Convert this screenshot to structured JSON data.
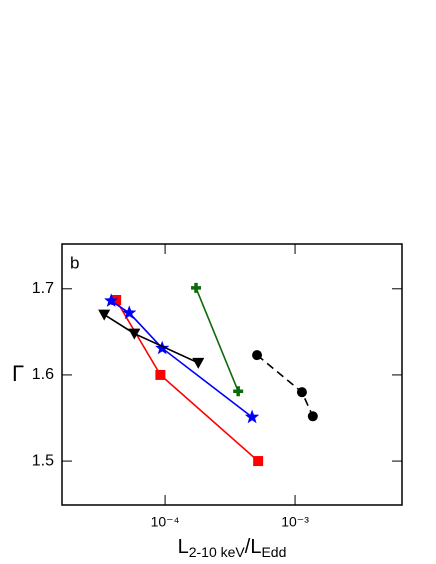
{
  "chart_data": {
    "type": "line",
    "panel_label": "b",
    "y_label": "Γ",
    "x_label": {
      "main": "L",
      "sub1": "2-10 keV",
      "sep": "/L",
      "sub2": "Edd"
    },
    "xscale": "log",
    "xlim": [
      1.61e-05,
      0.00665
    ],
    "ylim": [
      1.449,
      1.752
    ],
    "xticks": [
      {
        "value": 0.0001,
        "label": "10⁻⁴"
      },
      {
        "value": 0.001,
        "label": "10⁻³"
      }
    ],
    "yticks": [
      1.5,
      1.6,
      1.7
    ],
    "series": [
      {
        "color": "#ff0000",
        "marker": "square",
        "dash": "solid",
        "x": [
          4.2e-05,
          9.2e-05,
          0.00052
        ],
        "values": [
          1.687,
          1.6,
          1.5
        ]
      },
      {
        "color": "#0000ff",
        "marker": "star",
        "dash": "solid",
        "x": [
          3.85e-05,
          5.3e-05,
          9.5e-05,
          0.000467
        ],
        "values": [
          1.686,
          1.672,
          1.631,
          1.551
        ]
      },
      {
        "color": "#000000",
        "marker": "triangle-down",
        "dash": "solid",
        "x": [
          3.4e-05,
          5.8e-05,
          0.00018
        ],
        "values": [
          1.67,
          1.648,
          1.614
        ]
      },
      {
        "color": "#0b6b0b",
        "marker": "plus",
        "dash": "solid",
        "x": [
          0.000173,
          0.000365
        ],
        "values": [
          1.701,
          1.581
        ]
      },
      {
        "color": "#000000",
        "marker": "circle",
        "dash": "dashed",
        "x": [
          0.00051,
          0.00113,
          0.00137
        ],
        "values": [
          1.623,
          1.58,
          1.552
        ]
      }
    ]
  }
}
